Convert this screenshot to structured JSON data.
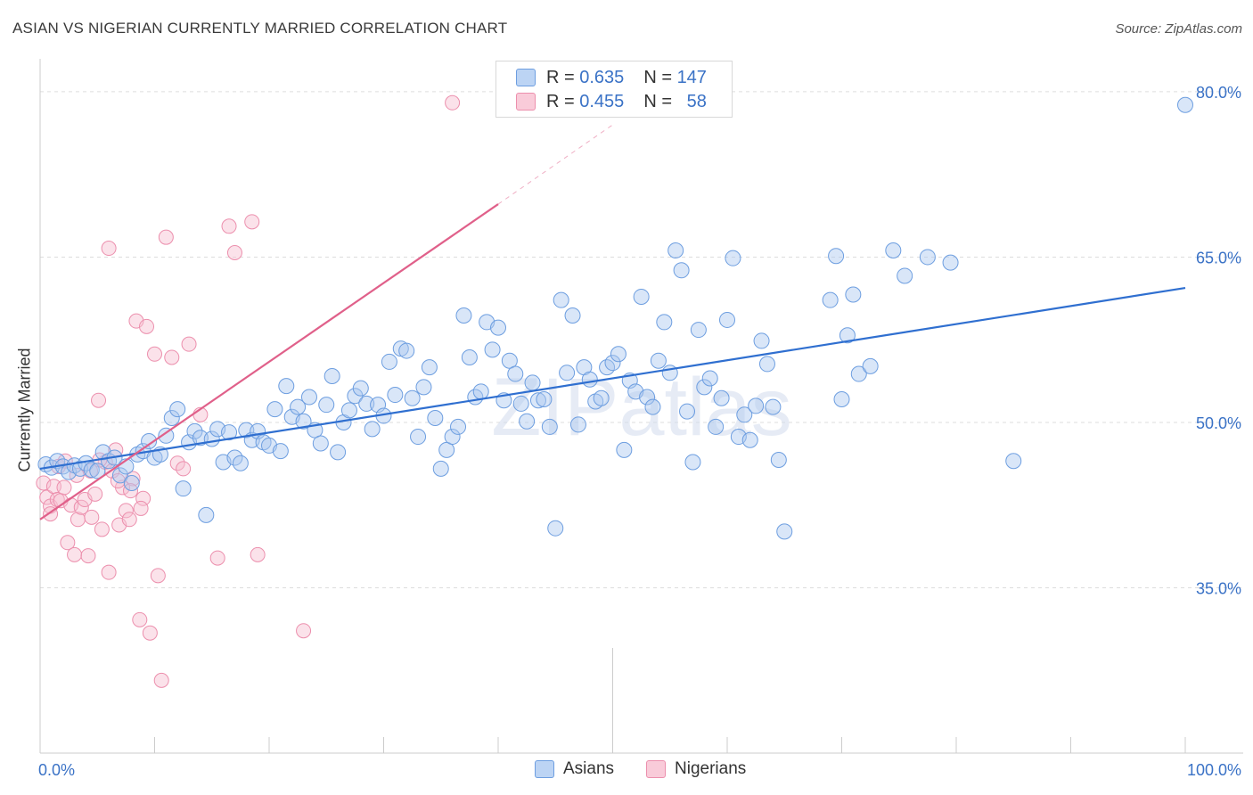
{
  "header": {
    "title": "ASIAN VS NIGERIAN CURRENTLY MARRIED CORRELATION CHART",
    "source": "Source: ZipAtlas.com"
  },
  "legend_box": {
    "asians": {
      "r_label": "R =",
      "r_value": "0.635",
      "n_label": "N =",
      "n_value": "147"
    },
    "nigerians": {
      "r_label": "R =",
      "r_value": "0.455",
      "n_label": "N =",
      "n_value": "58"
    }
  },
  "bottom_legend": {
    "asians": "Asians",
    "nigerians": "Nigerians"
  },
  "colors": {
    "asian_fill": "#aac8f0",
    "asian_stroke": "#6d9ee0",
    "asian_line": "#2f6fd0",
    "nigerian_fill": "#f7bfd0",
    "nigerian_stroke": "#ec8fad",
    "nigerian_line": "#e0608a",
    "tick_label": "#3a72c6",
    "grid": "#dddddd"
  },
  "chart_data": {
    "type": "scatter",
    "title": "ASIAN VS NIGERIAN CURRENTLY MARRIED CORRELATION CHART",
    "xlabel": "",
    "ylabel": "Currently Married",
    "xlim": [
      0,
      100
    ],
    "ylim": [
      20,
      82.5
    ],
    "x_tick_labels": [
      "0.0%",
      "100.0%"
    ],
    "y_ticks": [
      35,
      50,
      65,
      80
    ],
    "y_tick_labels": [
      "35.0%",
      "50.0%",
      "65.0%",
      "80.0%"
    ],
    "grid": true,
    "watermark": "ZIPatlas",
    "series": [
      {
        "name": "Asians",
        "trend": {
          "x": [
            0,
            100
          ],
          "y": [
            45.8,
            62.2
          ]
        },
        "points": [
          [
            0.5,
            46.2
          ],
          [
            1,
            45.9
          ],
          [
            1.5,
            46.5
          ],
          [
            2,
            46.0
          ],
          [
            2.5,
            45.5
          ],
          [
            3,
            46.1
          ],
          [
            3.5,
            45.8
          ],
          [
            4,
            46.3
          ],
          [
            4.5,
            45.7
          ],
          [
            5,
            45.6
          ],
          [
            5.5,
            47.3
          ],
          [
            6,
            46.5
          ],
          [
            6.5,
            46.8
          ],
          [
            7,
            45.2
          ],
          [
            7.5,
            46.0
          ],
          [
            8,
            44.5
          ],
          [
            8.5,
            47.1
          ],
          [
            9,
            47.4
          ],
          [
            9.5,
            48.3
          ],
          [
            10,
            46.8
          ],
          [
            10.5,
            47.1
          ],
          [
            11,
            48.8
          ],
          [
            11.5,
            50.4
          ],
          [
            12,
            51.2
          ],
          [
            12.5,
            44.0
          ],
          [
            13,
            48.2
          ],
          [
            13.5,
            49.2
          ],
          [
            14,
            48.6
          ],
          [
            14.5,
            41.6
          ],
          [
            15,
            48.5
          ],
          [
            15.5,
            49.4
          ],
          [
            16,
            46.4
          ],
          [
            16.5,
            49.1
          ],
          [
            17,
            46.8
          ],
          [
            17.5,
            46.3
          ],
          [
            18,
            49.3
          ],
          [
            18.5,
            48.4
          ],
          [
            19,
            49.2
          ],
          [
            19.5,
            48.2
          ],
          [
            20,
            47.9
          ],
          [
            20.5,
            51.2
          ],
          [
            21,
            47.4
          ],
          [
            21.5,
            53.3
          ],
          [
            22,
            50.5
          ],
          [
            22.5,
            51.4
          ],
          [
            23,
            50.1
          ],
          [
            23.5,
            52.3
          ],
          [
            24,
            49.3
          ],
          [
            24.5,
            48.1
          ],
          [
            25,
            51.6
          ],
          [
            25.5,
            54.2
          ],
          [
            26,
            47.3
          ],
          [
            26.5,
            50.0
          ],
          [
            27,
            51.1
          ],
          [
            27.5,
            52.4
          ],
          [
            28,
            53.1
          ],
          [
            28.5,
            51.7
          ],
          [
            29,
            49.4
          ],
          [
            29.5,
            51.6
          ],
          [
            30,
            50.6
          ],
          [
            30.5,
            55.5
          ],
          [
            31,
            52.5
          ],
          [
            31.5,
            56.7
          ],
          [
            32,
            56.5
          ],
          [
            32.5,
            52.2
          ],
          [
            33,
            48.7
          ],
          [
            33.5,
            53.2
          ],
          [
            34,
            55.0
          ],
          [
            34.5,
            50.4
          ],
          [
            35,
            45.8
          ],
          [
            35.5,
            47.5
          ],
          [
            36,
            48.7
          ],
          [
            36.5,
            49.6
          ],
          [
            37,
            59.7
          ],
          [
            37.5,
            55.9
          ],
          [
            38,
            52.3
          ],
          [
            38.5,
            52.8
          ],
          [
            39,
            59.1
          ],
          [
            39.5,
            56.6
          ],
          [
            40,
            58.6
          ],
          [
            40.5,
            52.0
          ],
          [
            41,
            55.6
          ],
          [
            41.5,
            54.4
          ],
          [
            42,
            51.7
          ],
          [
            42.5,
            50.1
          ],
          [
            43,
            53.6
          ],
          [
            43.5,
            52.0
          ],
          [
            44,
            52.1
          ],
          [
            44.5,
            49.6
          ],
          [
            45,
            40.4
          ],
          [
            45.5,
            61.1
          ],
          [
            46,
            54.5
          ],
          [
            46.5,
            59.7
          ],
          [
            47,
            49.8
          ],
          [
            47.5,
            55.0
          ],
          [
            48,
            53.9
          ],
          [
            48.5,
            51.9
          ],
          [
            49,
            52.2
          ],
          [
            49.5,
            55.0
          ],
          [
            50,
            55.4
          ],
          [
            50.5,
            56.2
          ],
          [
            51,
            47.5
          ],
          [
            51.5,
            53.8
          ],
          [
            52,
            52.8
          ],
          [
            52.5,
            61.4
          ],
          [
            53,
            52.3
          ],
          [
            53.5,
            51.4
          ],
          [
            54,
            55.6
          ],
          [
            54.5,
            59.1
          ],
          [
            55,
            54.5
          ],
          [
            55.5,
            65.6
          ],
          [
            56,
            63.8
          ],
          [
            56.5,
            51.0
          ],
          [
            57,
            46.4
          ],
          [
            57.5,
            58.4
          ],
          [
            58,
            53.2
          ],
          [
            58.5,
            54.0
          ],
          [
            59,
            49.6
          ],
          [
            59.5,
            52.2
          ],
          [
            60,
            59.3
          ],
          [
            60.5,
            64.9
          ],
          [
            61,
            48.7
          ],
          [
            61.5,
            50.7
          ],
          [
            62,
            48.4
          ],
          [
            62.5,
            51.5
          ],
          [
            63,
            57.4
          ],
          [
            63.5,
            55.3
          ],
          [
            64,
            51.4
          ],
          [
            64.5,
            46.6
          ],
          [
            65,
            40.1
          ],
          [
            69,
            61.1
          ],
          [
            69.5,
            65.1
          ],
          [
            70,
            52.1
          ],
          [
            70.5,
            57.9
          ],
          [
            71,
            61.6
          ],
          [
            71.5,
            54.4
          ],
          [
            72.5,
            55.1
          ],
          [
            74.5,
            65.6
          ],
          [
            75.5,
            63.3
          ],
          [
            77.5,
            65.0
          ],
          [
            79.5,
            64.5
          ],
          [
            85,
            46.5
          ],
          [
            100,
            78.8
          ]
        ]
      },
      {
        "name": "Nigerians",
        "trend": {
          "x": [
            0,
            40
          ],
          "y": [
            41.2,
            69.8
          ]
        },
        "trend_dashed": {
          "x": [
            40,
            50
          ],
          "y": [
            69.8,
            77.0
          ]
        },
        "points": [
          [
            0.3,
            44.5
          ],
          [
            0.6,
            43.2
          ],
          [
            0.9,
            42.4
          ],
          [
            1.2,
            44.2
          ],
          [
            1.5,
            43.0
          ],
          [
            1.8,
            42.9
          ],
          [
            2.1,
            44.1
          ],
          [
            2.4,
            39.1
          ],
          [
            2.7,
            42.5
          ],
          [
            3,
            38.0
          ],
          [
            3.3,
            41.2
          ],
          [
            3.6,
            42.3
          ],
          [
            3.9,
            43.0
          ],
          [
            4.2,
            37.9
          ],
          [
            4.5,
            41.4
          ],
          [
            4.8,
            43.5
          ],
          [
            5.1,
            52.0
          ],
          [
            5.4,
            40.3
          ],
          [
            5.7,
            46.4
          ],
          [
            6,
            36.4
          ],
          [
            6.3,
            45.6
          ],
          [
            6.6,
            47.5
          ],
          [
            6.9,
            40.7
          ],
          [
            7.2,
            44.1
          ],
          [
            7.5,
            42.0
          ],
          [
            7.8,
            41.2
          ],
          [
            8.1,
            44.9
          ],
          [
            8.4,
            59.2
          ],
          [
            8.7,
            32.1
          ],
          [
            9,
            43.1
          ],
          [
            9.3,
            58.7
          ],
          [
            9.6,
            30.9
          ],
          [
            10,
            56.2
          ],
          [
            10.3,
            36.1
          ],
          [
            10.6,
            26.6
          ],
          [
            11,
            66.8
          ],
          [
            11.5,
            55.9
          ],
          [
            12,
            46.3
          ],
          [
            12.5,
            45.8
          ],
          [
            13,
            57.1
          ],
          [
            14,
            50.7
          ],
          [
            15.5,
            37.7
          ],
          [
            16.5,
            67.8
          ],
          [
            17,
            65.4
          ],
          [
            18.5,
            68.2
          ],
          [
            19,
            38.0
          ],
          [
            23,
            31.1
          ],
          [
            36,
            79.0
          ],
          [
            1.6,
            46.0
          ],
          [
            2.2,
            46.5
          ],
          [
            3.2,
            45.2
          ],
          [
            4.4,
            45.6
          ],
          [
            5.2,
            46.6
          ],
          [
            6.8,
            44.7
          ],
          [
            7.9,
            43.8
          ],
          [
            8.8,
            42.2
          ],
          [
            0.9,
            41.7
          ],
          [
            6.0,
            65.8
          ]
        ]
      }
    ]
  }
}
